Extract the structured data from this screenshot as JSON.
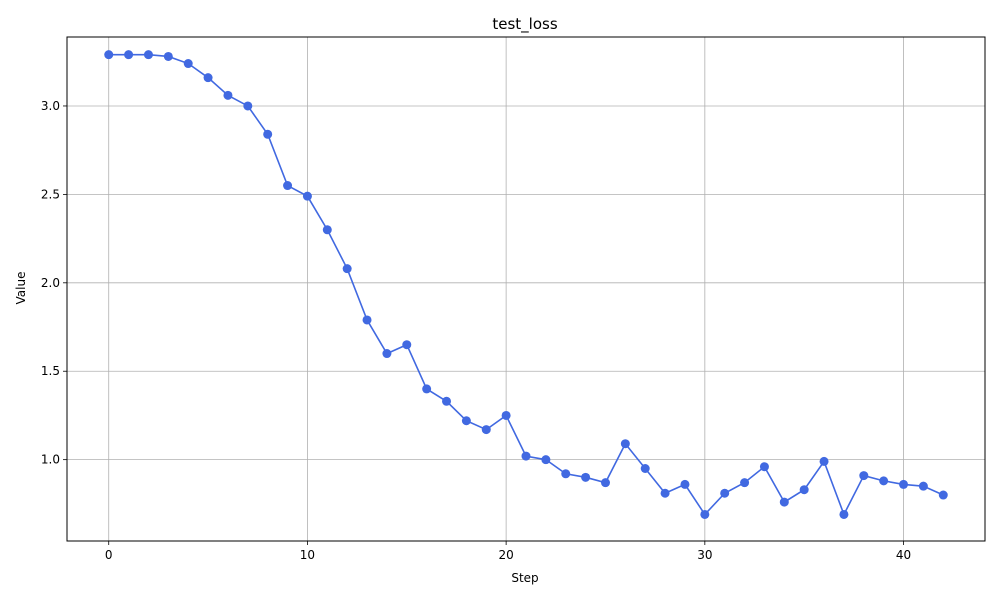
{
  "chart_data": {
    "type": "line",
    "title": "test_loss",
    "xlabel": "Step",
    "ylabel": "Value",
    "xlim": [
      -2.1,
      44.1
    ],
    "ylim": [
      0.54,
      3.39
    ],
    "xticks": [
      0,
      10,
      20,
      30,
      40
    ],
    "yticks": [
      1.0,
      1.5,
      2.0,
      2.5,
      3.0
    ],
    "grid": true,
    "series": [
      {
        "color": "#4169e1",
        "marker": "circle",
        "x": [
          0,
          1,
          2,
          3,
          4,
          5,
          6,
          7,
          8,
          9,
          10,
          11,
          12,
          13,
          14,
          15,
          16,
          17,
          18,
          19,
          20,
          21,
          22,
          23,
          24,
          25,
          26,
          27,
          28,
          29,
          30,
          31,
          32,
          33,
          34,
          35,
          36,
          37,
          38,
          39,
          40,
          41,
          42
        ],
        "values": [
          3.29,
          3.29,
          3.29,
          3.28,
          3.24,
          3.16,
          3.06,
          3.0,
          2.84,
          2.55,
          2.49,
          2.3,
          2.08,
          1.79,
          1.6,
          1.65,
          1.4,
          1.33,
          1.22,
          1.17,
          1.25,
          1.02,
          1.0,
          0.92,
          0.9,
          0.87,
          1.09,
          0.95,
          0.81,
          0.86,
          0.69,
          0.81,
          0.87,
          0.96,
          0.76,
          0.83,
          0.99,
          0.69,
          0.91,
          0.88,
          0.86,
          0.85,
          0.8
        ]
      }
    ]
  }
}
